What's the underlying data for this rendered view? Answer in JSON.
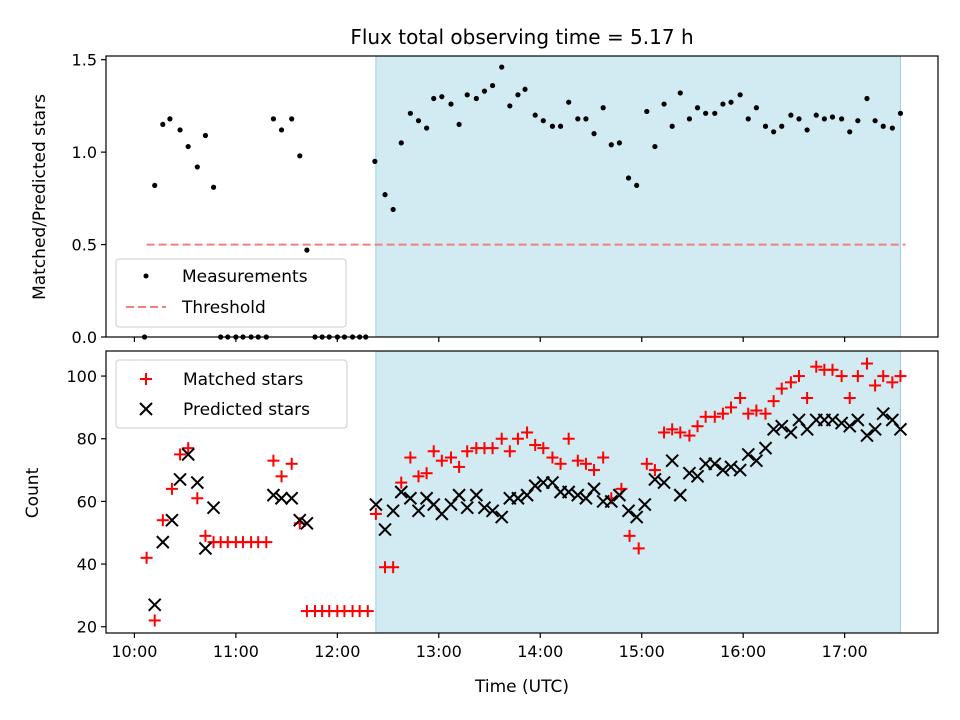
{
  "chart_data": [
    {
      "type": "scatter",
      "title": "Flux total observing time = 5.17 h",
      "ylabel": "Matched/Predicted stars",
      "xlabel": "",
      "ylim": [
        0,
        1.52
      ],
      "yticks": [
        0.0,
        0.5,
        1.0,
        1.5
      ],
      "ytick_labels": [
        "0.0",
        "0.5",
        "1.0",
        "1.5"
      ],
      "xlim_hours": [
        9.72,
        17.92
      ],
      "xticks_hours": [
        10,
        11,
        12,
        13,
        14,
        15,
        16,
        17
      ],
      "legend": {
        "placement": "lower-left",
        "entries": [
          "Measurements",
          "Threshold"
        ]
      },
      "threshold": {
        "y": 0.5,
        "x_range_hours": [
          10.12,
          17.6
        ],
        "color": "#f08080"
      },
      "highlight_hours": [
        12.38,
        17.55
      ],
      "highlight_color": "#add8e6",
      "series": [
        {
          "name": "Measurements",
          "color": "#000000",
          "points": [
            [
              10.1,
              0
            ],
            [
              10.2,
              0.82
            ],
            [
              10.28,
              1.15
            ],
            [
              10.35,
              1.18
            ],
            [
              10.45,
              1.12
            ],
            [
              10.53,
              1.03
            ],
            [
              10.62,
              0.92
            ],
            [
              10.7,
              1.09
            ],
            [
              10.78,
              0.81
            ],
            [
              10.85,
              0
            ],
            [
              10.92,
              0
            ],
            [
              11.0,
              0
            ],
            [
              11.07,
              0
            ],
            [
              11.15,
              0
            ],
            [
              11.22,
              0
            ],
            [
              11.3,
              0
            ],
            [
              11.37,
              1.18
            ],
            [
              11.45,
              1.12
            ],
            [
              11.55,
              1.18
            ],
            [
              11.63,
              0.98
            ],
            [
              11.7,
              0.47
            ],
            [
              11.78,
              0
            ],
            [
              11.85,
              0
            ],
            [
              11.92,
              0
            ],
            [
              12.0,
              0
            ],
            [
              12.07,
              0
            ],
            [
              12.15,
              0
            ],
            [
              12.22,
              0
            ],
            [
              12.28,
              0
            ],
            [
              12.37,
              0.95
            ],
            [
              12.47,
              0.77
            ],
            [
              12.55,
              0.69
            ],
            [
              12.63,
              1.05
            ],
            [
              12.72,
              1.21
            ],
            [
              12.8,
              1.17
            ],
            [
              12.88,
              1.13
            ],
            [
              12.95,
              1.29
            ],
            [
              13.03,
              1.3
            ],
            [
              13.12,
              1.26
            ],
            [
              13.2,
              1.15
            ],
            [
              13.28,
              1.31
            ],
            [
              13.37,
              1.29
            ],
            [
              13.45,
              1.33
            ],
            [
              13.53,
              1.36
            ],
            [
              13.62,
              1.46
            ],
            [
              13.7,
              1.25
            ],
            [
              13.78,
              1.31
            ],
            [
              13.85,
              1.34
            ],
            [
              13.95,
              1.2
            ],
            [
              14.03,
              1.17
            ],
            [
              14.12,
              1.14
            ],
            [
              14.2,
              1.14
            ],
            [
              14.28,
              1.27
            ],
            [
              14.37,
              1.18
            ],
            [
              14.45,
              1.18
            ],
            [
              14.53,
              1.1
            ],
            [
              14.62,
              1.24
            ],
            [
              14.7,
              1.04
            ],
            [
              14.78,
              1.05
            ],
            [
              14.87,
              0.86
            ],
            [
              14.95,
              0.82
            ],
            [
              15.05,
              1.22
            ],
            [
              15.13,
              1.03
            ],
            [
              15.22,
              1.26
            ],
            [
              15.3,
              1.14
            ],
            [
              15.38,
              1.32
            ],
            [
              15.47,
              1.18
            ],
            [
              15.55,
              1.24
            ],
            [
              15.63,
              1.21
            ],
            [
              15.72,
              1.21
            ],
            [
              15.8,
              1.26
            ],
            [
              15.88,
              1.27
            ],
            [
              15.97,
              1.31
            ],
            [
              16.05,
              1.18
            ],
            [
              16.13,
              1.24
            ],
            [
              16.22,
              1.14
            ],
            [
              16.3,
              1.11
            ],
            [
              16.38,
              1.14
            ],
            [
              16.47,
              1.2
            ],
            [
              16.55,
              1.18
            ],
            [
              16.63,
              1.12
            ],
            [
              16.72,
              1.2
            ],
            [
              16.8,
              1.18
            ],
            [
              16.88,
              1.19
            ],
            [
              16.97,
              1.18
            ],
            [
              17.05,
              1.11
            ],
            [
              17.13,
              1.17
            ],
            [
              17.22,
              1.29
            ],
            [
              17.3,
              1.17
            ],
            [
              17.38,
              1.14
            ],
            [
              17.47,
              1.13
            ],
            [
              17.55,
              1.21
            ]
          ]
        }
      ]
    },
    {
      "type": "scatter",
      "title": "",
      "ylabel": "Count",
      "xlabel": "Time (UTC)",
      "ylim": [
        18,
        108
      ],
      "yticks": [
        20,
        40,
        60,
        80,
        100
      ],
      "ytick_labels": [
        "20",
        "40",
        "60",
        "80",
        "100"
      ],
      "xlim_hours": [
        9.72,
        17.92
      ],
      "xticks_hours": [
        10,
        11,
        12,
        13,
        14,
        15,
        16,
        17
      ],
      "xtick_labels": [
        "10:00",
        "11:00",
        "12:00",
        "13:00",
        "14:00",
        "15:00",
        "16:00",
        "17:00"
      ],
      "legend": {
        "placement": "upper-left",
        "entries": [
          "Matched stars",
          "Predicted stars"
        ]
      },
      "highlight_hours": [
        12.38,
        17.55
      ],
      "highlight_color": "#add8e6",
      "series": [
        {
          "name": "Matched stars",
          "marker": "plus",
          "color": "#ff0000",
          "points": [
            [
              10.12,
              42
            ],
            [
              10.2,
              22
            ],
            [
              10.28,
              54
            ],
            [
              10.37,
              64
            ],
            [
              10.45,
              75
            ],
            [
              10.53,
              77
            ],
            [
              10.62,
              61
            ],
            [
              10.7,
              49
            ],
            [
              10.78,
              47
            ],
            [
              10.85,
              47
            ],
            [
              10.92,
              47
            ],
            [
              11.0,
              47
            ],
            [
              11.07,
              47
            ],
            [
              11.15,
              47
            ],
            [
              11.22,
              47
            ],
            [
              11.3,
              47
            ],
            [
              11.37,
              73
            ],
            [
              11.45,
              68
            ],
            [
              11.55,
              72
            ],
            [
              11.63,
              53
            ],
            [
              11.7,
              25
            ],
            [
              11.78,
              25
            ],
            [
              11.85,
              25
            ],
            [
              11.92,
              25
            ],
            [
              12.0,
              25
            ],
            [
              12.07,
              25
            ],
            [
              12.15,
              25
            ],
            [
              12.22,
              25
            ],
            [
              12.3,
              25
            ],
            [
              12.38,
              56
            ],
            [
              12.47,
              39
            ],
            [
              12.55,
              39
            ],
            [
              12.63,
              66
            ],
            [
              12.72,
              74
            ],
            [
              12.8,
              68
            ],
            [
              12.88,
              69
            ],
            [
              12.95,
              76
            ],
            [
              13.03,
              73
            ],
            [
              13.12,
              74
            ],
            [
              13.2,
              71
            ],
            [
              13.28,
              76
            ],
            [
              13.37,
              77
            ],
            [
              13.45,
              77
            ],
            [
              13.53,
              77
            ],
            [
              13.62,
              80
            ],
            [
              13.7,
              76
            ],
            [
              13.78,
              80
            ],
            [
              13.87,
              82
            ],
            [
              13.95,
              78
            ],
            [
              14.03,
              77
            ],
            [
              14.12,
              74
            ],
            [
              14.2,
              72
            ],
            [
              14.28,
              80
            ],
            [
              14.37,
              73
            ],
            [
              14.45,
              72
            ],
            [
              14.53,
              70
            ],
            [
              14.62,
              74
            ],
            [
              14.7,
              61
            ],
            [
              14.8,
              64
            ],
            [
              14.88,
              49
            ],
            [
              14.97,
              45
            ],
            [
              15.05,
              72
            ],
            [
              15.13,
              70
            ],
            [
              15.22,
              82
            ],
            [
              15.3,
              83
            ],
            [
              15.38,
              82
            ],
            [
              15.47,
              81
            ],
            [
              15.55,
              84
            ],
            [
              15.63,
              87
            ],
            [
              15.72,
              87
            ],
            [
              15.8,
              88
            ],
            [
              15.88,
              90
            ],
            [
              15.97,
              93
            ],
            [
              16.05,
              88
            ],
            [
              16.13,
              89
            ],
            [
              16.22,
              88
            ],
            [
              16.3,
              92
            ],
            [
              16.38,
              96
            ],
            [
              16.47,
              98
            ],
            [
              16.55,
              100
            ],
            [
              16.63,
              93
            ],
            [
              16.72,
              103
            ],
            [
              16.8,
              102
            ],
            [
              16.88,
              102
            ],
            [
              16.97,
              100
            ],
            [
              17.05,
              93
            ],
            [
              17.13,
              100
            ],
            [
              17.22,
              104
            ],
            [
              17.3,
              97
            ],
            [
              17.38,
              100
            ],
            [
              17.47,
              98
            ],
            [
              17.55,
              100
            ]
          ]
        },
        {
          "name": "Predicted stars",
          "marker": "x",
          "color": "#000000",
          "points": [
            [
              10.2,
              27
            ],
            [
              10.28,
              47
            ],
            [
              10.37,
              54
            ],
            [
              10.45,
              67
            ],
            [
              10.53,
              75
            ],
            [
              10.62,
              66
            ],
            [
              10.7,
              45
            ],
            [
              10.78,
              58
            ],
            [
              11.37,
              62
            ],
            [
              11.45,
              61
            ],
            [
              11.55,
              61
            ],
            [
              11.63,
              54
            ],
            [
              11.7,
              53
            ],
            [
              12.38,
              59
            ],
            [
              12.47,
              51
            ],
            [
              12.55,
              57
            ],
            [
              12.63,
              63
            ],
            [
              12.72,
              61
            ],
            [
              12.8,
              57
            ],
            [
              12.88,
              61
            ],
            [
              12.95,
              59
            ],
            [
              13.03,
              56
            ],
            [
              13.12,
              59
            ],
            [
              13.2,
              62
            ],
            [
              13.28,
              58
            ],
            [
              13.37,
              62
            ],
            [
              13.45,
              58
            ],
            [
              13.53,
              57
            ],
            [
              13.62,
              55
            ],
            [
              13.7,
              61
            ],
            [
              13.78,
              61
            ],
            [
              13.87,
              62
            ],
            [
              13.95,
              65
            ],
            [
              14.03,
              66
            ],
            [
              14.12,
              66
            ],
            [
              14.2,
              63
            ],
            [
              14.28,
              63
            ],
            [
              14.37,
              62
            ],
            [
              14.45,
              61
            ],
            [
              14.53,
              64
            ],
            [
              14.62,
              60
            ],
            [
              14.7,
              60
            ],
            [
              14.78,
              62
            ],
            [
              14.87,
              57
            ],
            [
              14.95,
              55
            ],
            [
              15.03,
              59
            ],
            [
              15.13,
              67
            ],
            [
              15.22,
              66
            ],
            [
              15.3,
              73
            ],
            [
              15.38,
              62
            ],
            [
              15.47,
              69
            ],
            [
              15.55,
              68
            ],
            [
              15.63,
              72
            ],
            [
              15.72,
              72
            ],
            [
              15.8,
              70
            ],
            [
              15.88,
              71
            ],
            [
              15.97,
              70
            ],
            [
              16.05,
              75
            ],
            [
              16.13,
              73
            ],
            [
              16.22,
              77
            ],
            [
              16.3,
              83
            ],
            [
              16.38,
              84
            ],
            [
              16.47,
              82
            ],
            [
              16.55,
              86
            ],
            [
              16.63,
              83
            ],
            [
              16.72,
              86
            ],
            [
              16.8,
              86
            ],
            [
              16.88,
              86
            ],
            [
              16.97,
              85
            ],
            [
              17.05,
              84
            ],
            [
              17.13,
              86
            ],
            [
              17.22,
              81
            ],
            [
              17.3,
              83
            ],
            [
              17.38,
              88
            ],
            [
              17.47,
              86
            ],
            [
              17.55,
              83
            ]
          ]
        }
      ]
    }
  ]
}
